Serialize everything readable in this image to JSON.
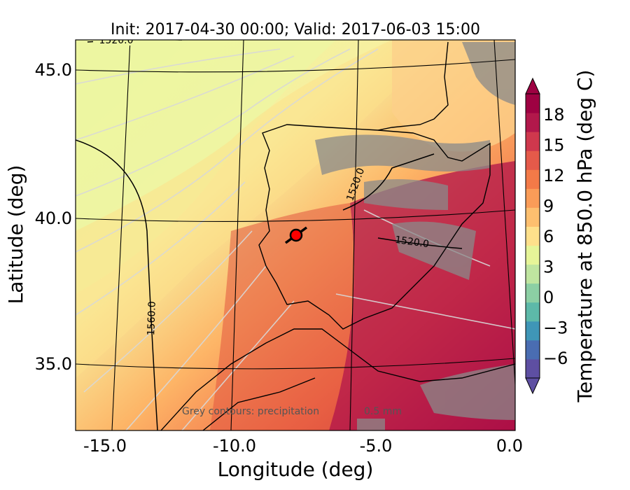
{
  "title": "Init: 2017-04-30 00:00; Valid: 2017-06-03 15:00",
  "axes": {
    "xlabel": "Longitude (deg)",
    "ylabel": "Latitude (deg)",
    "xticks": [
      "-15.0",
      "-10.0",
      "-5.0",
      "0.0"
    ],
    "yticks": [
      "45.0",
      "40.0",
      "35.0"
    ]
  },
  "map": {
    "lon_range": [
      -15.8,
      0.1
    ],
    "lat_range": [
      32.8,
      46.0
    ],
    "contour_labels": [
      "1520.0",
      "1520.0",
      "1520.0",
      "1560.0"
    ],
    "annotation": "Grey contours: precipitation",
    "annotation_tail": "0.5 mm",
    "marker": {
      "lon": -7.6,
      "lat": 39.3,
      "color": "#ff0000"
    }
  },
  "colorbar": {
    "label": "Temperature at 850.0 hPa (deg C)",
    "tick_labels": [
      "18",
      "15",
      "12",
      "9",
      "6",
      "3",
      "0",
      "−3",
      "−6"
    ],
    "tick_values": [
      18,
      15,
      12,
      9,
      6,
      3,
      0,
      -3,
      -6
    ],
    "vmin": -8,
    "vmax": 20,
    "colors": [
      "#5e4fa2",
      "#4a6db2",
      "#3f96b7",
      "#5db9a9",
      "#8ccfa4",
      "#bfe5a0",
      "#e6f598",
      "#fee08b",
      "#fdbf6f",
      "#fa9c58",
      "#f37a48",
      "#e55a4a",
      "#cf384d",
      "#b2184b",
      "#9e0142"
    ]
  }
}
